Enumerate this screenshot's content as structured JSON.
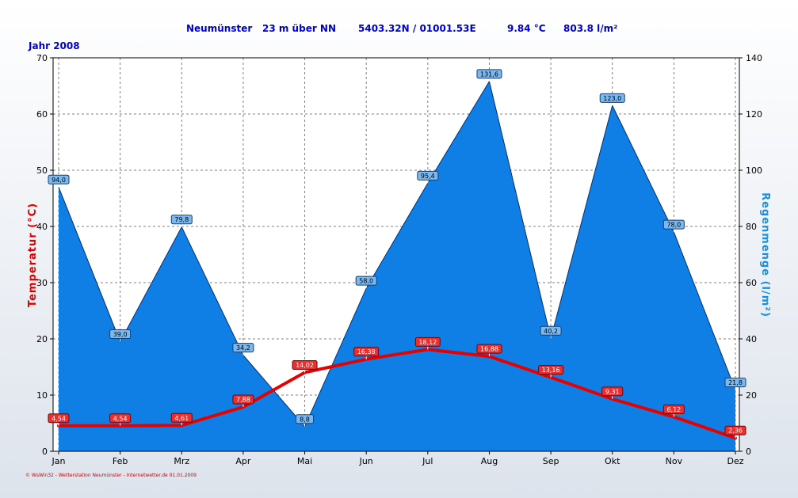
{
  "header": {
    "station": "Neumünster",
    "altitude": "23 m über NN",
    "coords": "5403.32N / 01001.53E",
    "mean_temp": "9.84 °C",
    "rain_total": "803.8 l/m²",
    "year_label": "Jahr 2008"
  },
  "footer": "© WsWin32 - Wetterstation Neumünster - Internetwetter.de  01.01.2009",
  "colors": {
    "rain_fill": "#0f7fe6",
    "temp_line": "#e60000",
    "grid": "#808080",
    "header_text": "#0000cc",
    "right_axis_title": "#1a8fdc"
  },
  "chart_data": {
    "type": "line",
    "categories": [
      "Jan",
      "Feb",
      "Mrz",
      "Apr",
      "Mai",
      "Jun",
      "Jul",
      "Aug",
      "Sep",
      "Okt",
      "Nov",
      "Dez"
    ],
    "series": [
      {
        "name": "Temperatur",
        "kind": "line",
        "axis": "left",
        "values": [
          4.54,
          4.54,
          4.61,
          7.88,
          14.02,
          16.38,
          18.12,
          16.88,
          13.16,
          9.31,
          6.12,
          2.36
        ],
        "labels": [
          "4,54",
          "4,54",
          "4,61",
          "7,88",
          "14,02",
          "16,38",
          "18,12",
          "16,88",
          "13,16",
          "9,31",
          "6,12",
          "2,36"
        ]
      },
      {
        "name": "Regenmenge",
        "kind": "area",
        "axis": "right",
        "values": [
          94.0,
          39.0,
          79.8,
          34.2,
          8.8,
          58.0,
          95.4,
          131.6,
          40.2,
          123.0,
          78.0,
          21.8
        ],
        "labels": [
          "94,0",
          "39,0",
          "79,8",
          "34,2",
          "8,8",
          "58,0",
          "95,4",
          "131,6",
          "40,2",
          "123,0",
          "78,0",
          "21,8"
        ]
      }
    ],
    "ylabel": "Temperatur  (°C)",
    "y2label": "Regenmenge  (l/m²)",
    "ylim": [
      0,
      70
    ],
    "y2lim": [
      0,
      140
    ],
    "yticks": [
      0,
      10,
      20,
      30,
      40,
      50,
      60,
      70
    ],
    "y2ticks": [
      0,
      20,
      40,
      60,
      80,
      100,
      120,
      140
    ],
    "grid": true
  }
}
